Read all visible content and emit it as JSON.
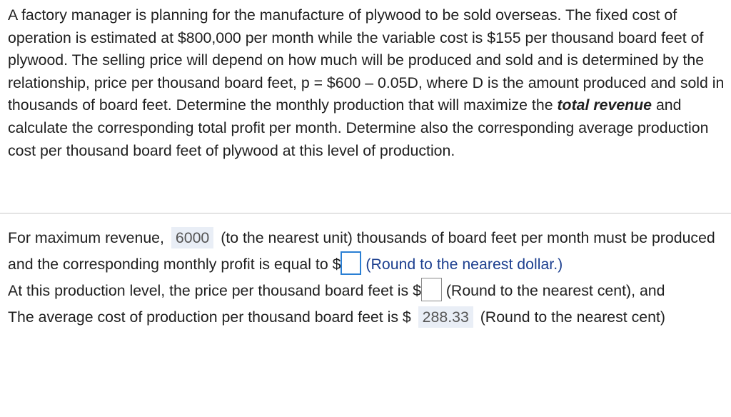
{
  "problem": {
    "text_before": "A factory manager is planning for the manufacture of plywood to be sold overseas. The fixed cost of operation is estimated at $800,000 per month while the variable cost is $155 per thousand board feet of plywood. The selling price will depend on how much will be produced and sold and is determined by the relationship, price per thousand board feet, p = $600 – 0.05D, where D is the amount produced and sold in thousands of board feet. Determine the monthly production that will maximize the ",
    "emphasis": "total revenue",
    "text_after": " and calculate the corresponding total profit per month. Determine also the corresponding average production cost per thousand board feet of plywood at this level of production."
  },
  "answers": {
    "line1": {
      "prefix": "For maximum revenue,",
      "value": "6000",
      "suffix": "(to the nearest unit) thousands of board feet per month must be produced and the corresponding monthly profit is equal to $",
      "input_value": "",
      "hint": "(Round to the nearest dollar.)"
    },
    "line2": {
      "prefix": "At this production level, the price per thousand board feet is $",
      "input_value": "",
      "suffix": "(Round to the nearest cent), and"
    },
    "line3": {
      "prefix": "The average cost of production per thousand board feet is $",
      "value": "288.33",
      "suffix": "(Round to the nearest cent)"
    }
  }
}
